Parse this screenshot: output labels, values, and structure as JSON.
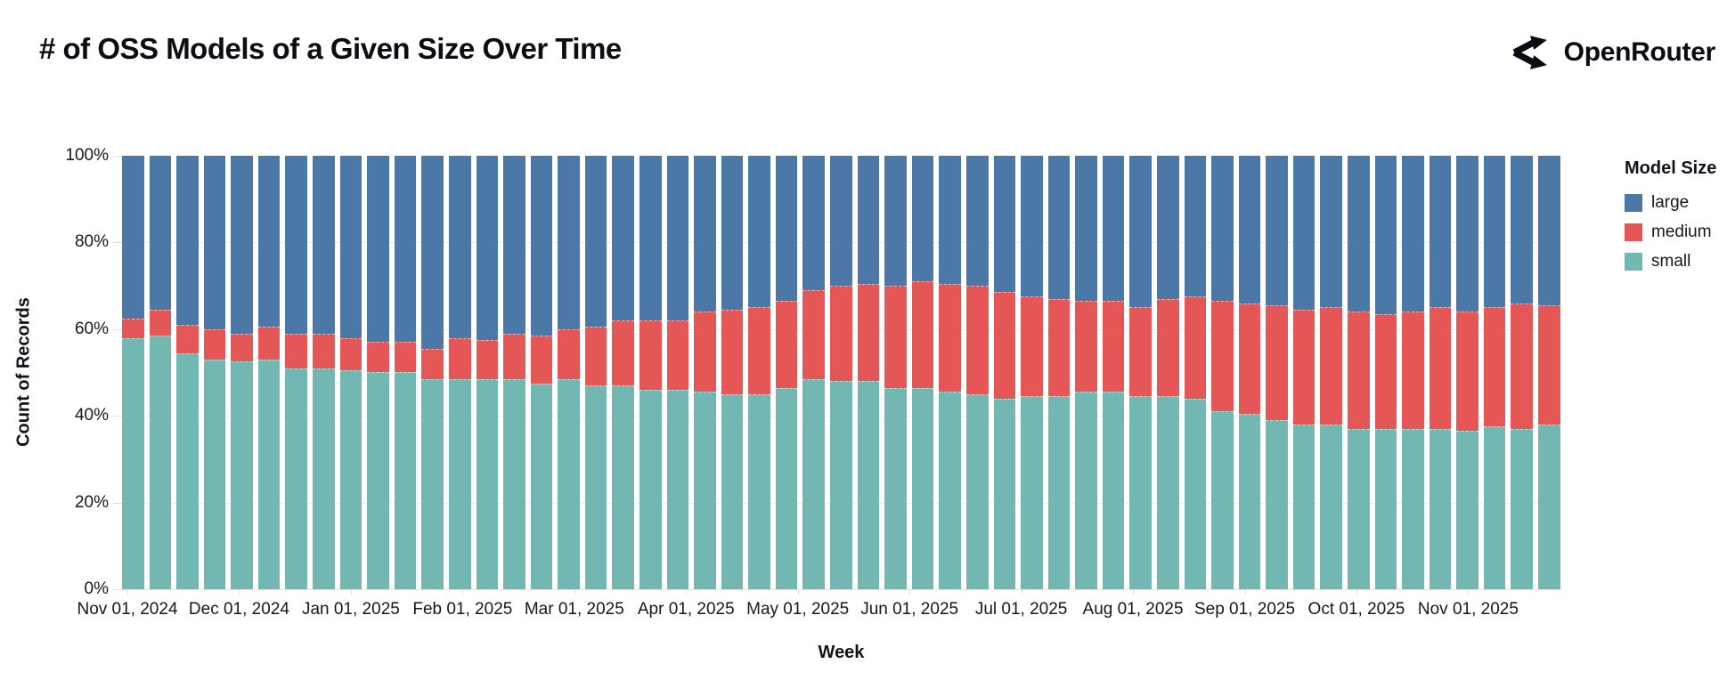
{
  "header": {
    "title": "# of OSS Models of a Given Size Over Time",
    "brand": "OpenRouter"
  },
  "chart_data": {
    "type": "bar",
    "stacked": true,
    "normalized_percent": true,
    "title": "# of OSS Models of a Given Size Over Time",
    "xlabel": "Week",
    "ylabel": "Count of Records",
    "ylim": [
      0,
      100
    ],
    "grid": true,
    "n_weeks": 53,
    "x_tick_labels": [
      "Nov 01, 2024",
      "Dec 01, 2024",
      "Jan 01, 2025",
      "Feb 01, 2025",
      "Mar 01, 2025",
      "Apr 01, 2025",
      "May 01, 2025",
      "Jun 01, 2025",
      "Jul 01, 2025",
      "Aug 01, 2025",
      "Sep 01, 2025",
      "Oct 01, 2025",
      "Nov 01, 2025"
    ],
    "y_tick_labels": [
      "100%",
      "80%",
      "60%",
      "40%",
      "20%",
      "0%"
    ],
    "series": [
      {
        "name": "small",
        "color": "#72b7b2",
        "values": [
          58,
          58.5,
          54.5,
          53,
          52.5,
          53,
          51,
          51,
          50.5,
          50,
          50,
          48.5,
          48.5,
          48.5,
          48.5,
          47.5,
          48.5,
          47,
          47,
          46,
          46,
          45.5,
          45,
          45,
          46.5,
          48.5,
          48,
          48,
          46.5,
          46.5,
          45.5,
          45,
          44,
          44.5,
          44.5,
          45.5,
          45.5,
          44.5,
          44.5,
          44,
          41,
          40.5,
          39,
          38,
          38,
          37,
          37,
          37,
          37,
          36.5,
          37.5,
          37,
          38
        ]
      },
      {
        "name": "medium",
        "color": "#e45756",
        "values": [
          4.5,
          6,
          6.5,
          7,
          6.5,
          7.5,
          8,
          8,
          7.5,
          7,
          7,
          7,
          9.5,
          9,
          10.5,
          11,
          11.5,
          13.5,
          15,
          16,
          16,
          18.5,
          19.5,
          20,
          20,
          20.5,
          22,
          22.5,
          23.5,
          24.5,
          25,
          25,
          24.5,
          23,
          22.5,
          21,
          21,
          20.5,
          22.5,
          23.5,
          25.5,
          25.5,
          26.5,
          26.5,
          27,
          27,
          26.5,
          27,
          28,
          27.5,
          27.5,
          29,
          27.5
        ]
      },
      {
        "name": "large",
        "color": "#4c78a8",
        "values": [
          37.5,
          35.5,
          39,
          40,
          41,
          39.5,
          41,
          41,
          42,
          43,
          43,
          44.5,
          42,
          42.5,
          41,
          41.5,
          40,
          39.5,
          38,
          38,
          38,
          36,
          35.5,
          35,
          33.5,
          31,
          30,
          29.5,
          30,
          29,
          29.5,
          30,
          31.5,
          32.5,
          33,
          33.5,
          33.5,
          35,
          33,
          32.5,
          33.5,
          34,
          34.5,
          35.5,
          35,
          36,
          36.5,
          36,
          35,
          36,
          35,
          34,
          34.5
        ]
      }
    ],
    "legend": {
      "title": "Model Size",
      "position": "right",
      "items": [
        {
          "label": "large",
          "color": "#4c78a8"
        },
        {
          "label": "medium",
          "color": "#e45756"
        },
        {
          "label": "small",
          "color": "#72b7b2"
        }
      ]
    }
  },
  "colors": {
    "text": "#15151f",
    "grid": "#e9ebf1",
    "tick": "#d8dbe2",
    "background": "#ffffff"
  }
}
